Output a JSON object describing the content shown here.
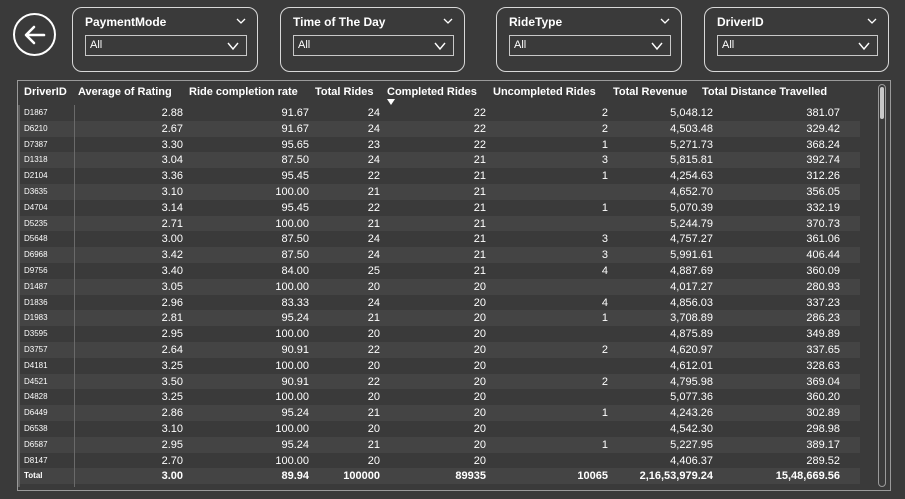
{
  "slicers": [
    {
      "title": "PaymentMode",
      "value": "All"
    },
    {
      "title": "Time of The Day",
      "value": "All"
    },
    {
      "title": "RideType",
      "value": "All"
    },
    {
      "title": "DriverID",
      "value": "All"
    }
  ],
  "table": {
    "headers": [
      "DriverID",
      "Average of Rating",
      "Ride completion rate",
      "Total Rides",
      "Completed Rides",
      "Uncompleted Rides",
      "Total Revenue",
      "Total Distance Travelled"
    ],
    "sorted_column": "Completed Rides",
    "rows": [
      [
        "D1867",
        "2.88",
        "91.67",
        "24",
        "22",
        "2",
        "5,048.12",
        "381.07"
      ],
      [
        "D6210",
        "2.67",
        "91.67",
        "24",
        "22",
        "2",
        "4,503.48",
        "329.42"
      ],
      [
        "D7387",
        "3.30",
        "95.65",
        "23",
        "22",
        "1",
        "5,271.73",
        "368.24"
      ],
      [
        "D1318",
        "3.04",
        "87.50",
        "24",
        "21",
        "3",
        "5,815.81",
        "392.74"
      ],
      [
        "D2104",
        "3.36",
        "95.45",
        "22",
        "21",
        "1",
        "4,254.63",
        "312.26"
      ],
      [
        "D3635",
        "3.10",
        "100.00",
        "21",
        "21",
        "",
        "4,652.70",
        "356.05"
      ],
      [
        "D4704",
        "3.14",
        "95.45",
        "22",
        "21",
        "1",
        "5,070.39",
        "332.19"
      ],
      [
        "D5235",
        "2.71",
        "100.00",
        "21",
        "21",
        "",
        "5,244.79",
        "370.73"
      ],
      [
        "D5648",
        "3.00",
        "87.50",
        "24",
        "21",
        "3",
        "4,757.27",
        "361.06"
      ],
      [
        "D6968",
        "3.42",
        "87.50",
        "24",
        "21",
        "3",
        "5,991.61",
        "406.44"
      ],
      [
        "D9756",
        "3.40",
        "84.00",
        "25",
        "21",
        "4",
        "4,887.69",
        "360.09"
      ],
      [
        "D1487",
        "3.05",
        "100.00",
        "20",
        "20",
        "",
        "4,017.27",
        "280.93"
      ],
      [
        "D1836",
        "2.96",
        "83.33",
        "24",
        "20",
        "4",
        "4,856.03",
        "337.23"
      ],
      [
        "D1983",
        "2.81",
        "95.24",
        "21",
        "20",
        "1",
        "3,708.89",
        "286.23"
      ],
      [
        "D3595",
        "2.95",
        "100.00",
        "20",
        "20",
        "",
        "4,875.89",
        "349.89"
      ],
      [
        "D3757",
        "2.64",
        "90.91",
        "22",
        "20",
        "2",
        "4,620.97",
        "337.65"
      ],
      [
        "D4181",
        "3.25",
        "100.00",
        "20",
        "20",
        "",
        "4,612.01",
        "328.63"
      ],
      [
        "D4521",
        "3.50",
        "90.91",
        "22",
        "20",
        "2",
        "4,795.98",
        "369.04"
      ],
      [
        "D4828",
        "3.25",
        "100.00",
        "20",
        "20",
        "",
        "5,077.36",
        "360.20"
      ],
      [
        "D6449",
        "2.86",
        "95.24",
        "21",
        "20",
        "1",
        "4,243.26",
        "302.89"
      ],
      [
        "D6538",
        "3.10",
        "100.00",
        "20",
        "20",
        "",
        "4,542.30",
        "298.98"
      ],
      [
        "D6587",
        "2.95",
        "95.24",
        "21",
        "20",
        "1",
        "5,227.95",
        "389.17"
      ],
      [
        "D8147",
        "2.70",
        "100.00",
        "20",
        "20",
        "",
        "4,406.37",
        "289.52"
      ]
    ],
    "total": [
      "Total",
      "3.00",
      "89.94",
      "100000",
      "89935",
      "10065",
      "2,16,53,979.24",
      "15,48,669.56"
    ]
  },
  "colors": {
    "background": "#3a3a3a",
    "alt_row": "#444444",
    "text": "#ffffff",
    "border": "#d8d8d8"
  }
}
